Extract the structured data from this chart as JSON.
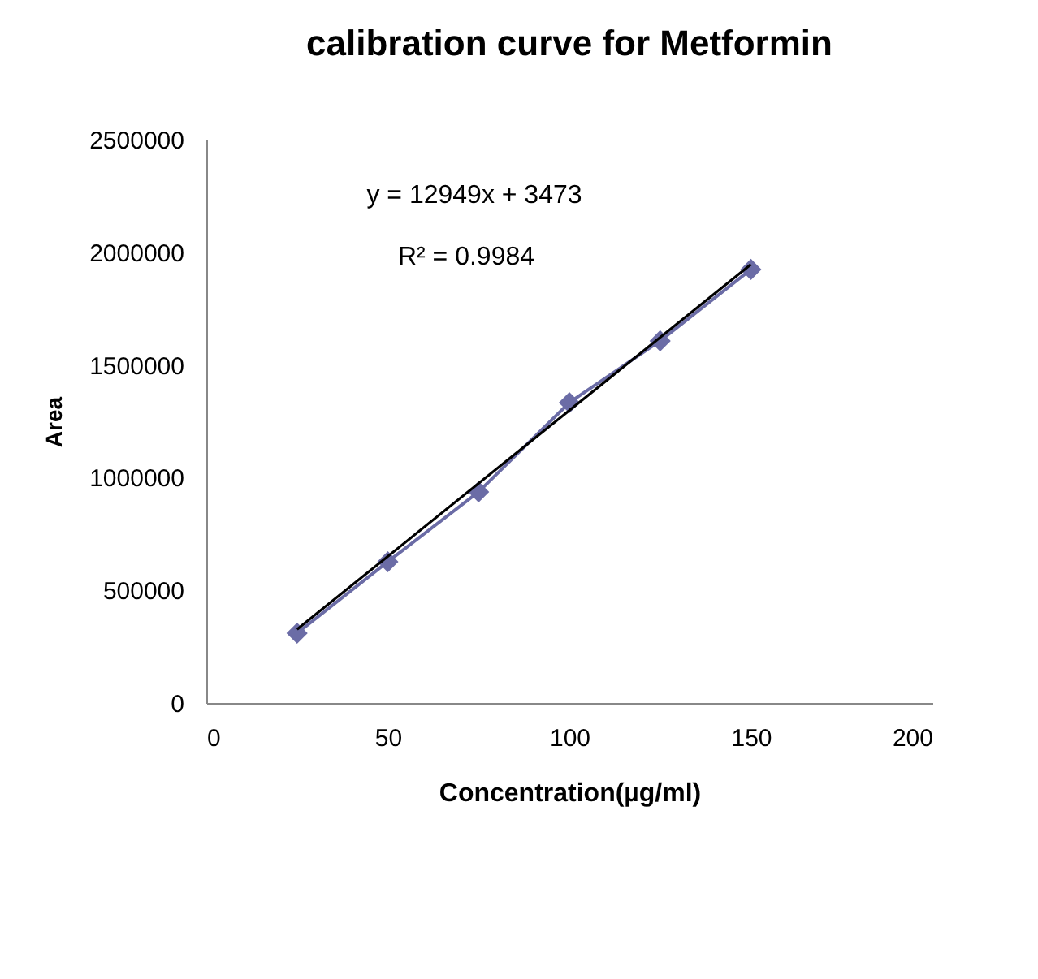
{
  "chart_data": {
    "type": "line",
    "title": "calibration curve for Metformin",
    "xlabel": "Concentration(µg/ml)",
    "ylabel": "Area",
    "x": [
      25,
      50,
      75,
      100,
      125,
      150
    ],
    "series": [
      {
        "color": "#6b6ca6",
        "values": [
          310000,
          627000,
          937000,
          1333000,
          1607000,
          1924000
        ],
        "marker": "diamond"
      },
      {
        "type": "line",
        "color": "#000000",
        "x": [
          25,
          150
        ],
        "values": [
          327000,
          1946000
        ],
        "marker": "none"
      }
    ],
    "annotations": [
      "y = 12949x + 3473",
      "R² = 0.9984"
    ],
    "xlim": [
      0,
      200
    ],
    "xticks": [
      0,
      50,
      100,
      150,
      200
    ],
    "ylim": [
      0,
      2500000
    ],
    "yticks": [
      0,
      500000,
      1000000,
      1500000,
      2000000,
      2500000
    ],
    "grid": false,
    "line_style": "solid"
  }
}
